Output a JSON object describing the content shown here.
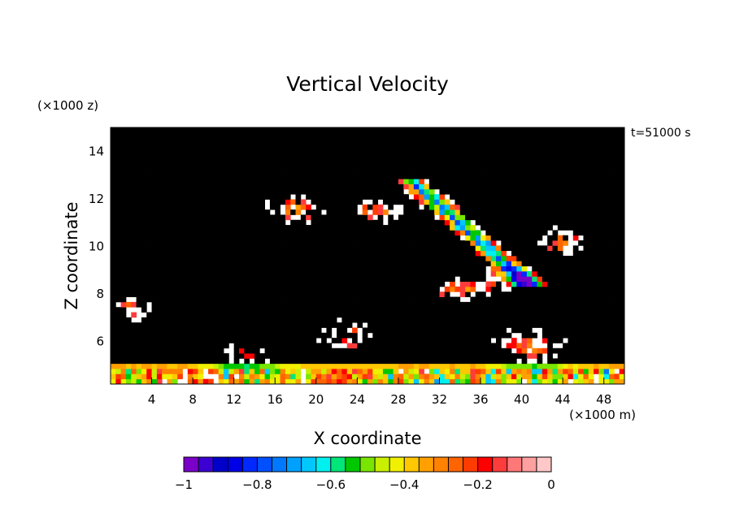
{
  "chart_data": {
    "type": "heatmap",
    "title": "Vertical Velocity",
    "xlabel": "X coordinate",
    "ylabel": "Z coordinate",
    "x_unit": "(×1000 m)",
    "y_unit": "(×1000 z)",
    "time_label": "t=51000 s",
    "xlim": [
      0,
      50
    ],
    "ylim": [
      4.2,
      15
    ],
    "x_ticks": [
      4,
      8,
      12,
      16,
      20,
      24,
      28,
      32,
      36,
      40,
      44,
      48
    ],
    "y_ticks": [
      6,
      8,
      10,
      12,
      14
    ],
    "colorbar": {
      "range": [
        -1,
        0
      ],
      "tick_values": [
        -1,
        -0.8,
        -0.6,
        -0.4,
        -0.2,
        0
      ],
      "tick_labels": [
        "−1",
        "−0.8",
        "−0.6",
        "−0.4",
        "−0.2",
        "0"
      ],
      "colors": [
        "#7a00c8",
        "#3c00d2",
        "#0000c8",
        "#0000e6",
        "#0028ff",
        "#0050ff",
        "#0078ff",
        "#00a0ff",
        "#00c8ff",
        "#00f0f0",
        "#00e678",
        "#00c800",
        "#78e600",
        "#c8f000",
        "#f0f000",
        "#ffc800",
        "#ffa000",
        "#ff8200",
        "#ff6400",
        "#ff3c00",
        "#ff0000",
        "#ff3c3c",
        "#ff7878",
        "#ffa0a0",
        "#ffc8c8"
      ]
    },
    "notable_features": [
      {
        "description": "diagonal band of strong downdraft",
        "x_range": [
          30,
          39
        ],
        "z_range": [
          9.5,
          12.5
        ],
        "min_value": -0.85
      },
      {
        "description": "weak downdraft patches near lower boundary",
        "x_range": [
          0,
          50
        ],
        "z_range": [
          4.2,
          5.2
        ],
        "min_value": -0.8
      }
    ]
  }
}
